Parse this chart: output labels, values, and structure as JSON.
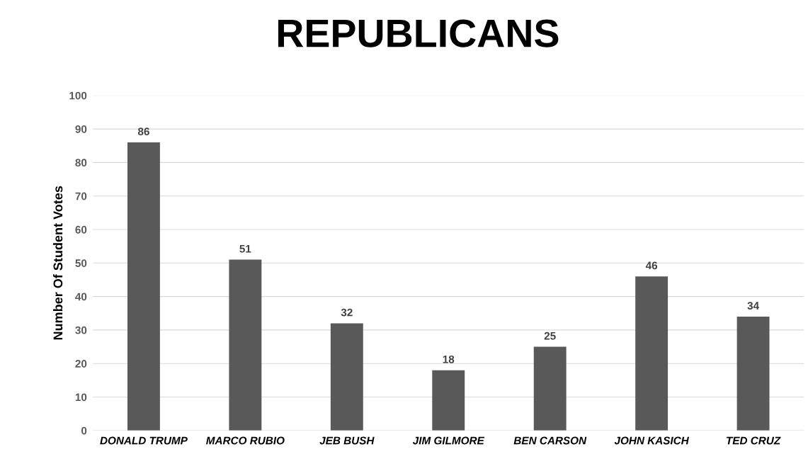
{
  "chart_data": {
    "type": "bar",
    "title": "REPUBLICANS",
    "ylabel": "Number Of Student Votes",
    "categories": [
      "DONALD TRUMP",
      "MARCO RUBIO",
      "JEB BUSH",
      "JIM GILMORE",
      "BEN CARSON",
      "JOHN KASICH",
      "TED CRUZ"
    ],
    "values": [
      86,
      51,
      32,
      18,
      25,
      46,
      34
    ],
    "color": "#595959",
    "ylim": [
      0,
      100
    ],
    "yticks": [
      0,
      10,
      20,
      30,
      40,
      50,
      60,
      70,
      80,
      90,
      100
    ],
    "grid": "y",
    "data_labels": true
  }
}
